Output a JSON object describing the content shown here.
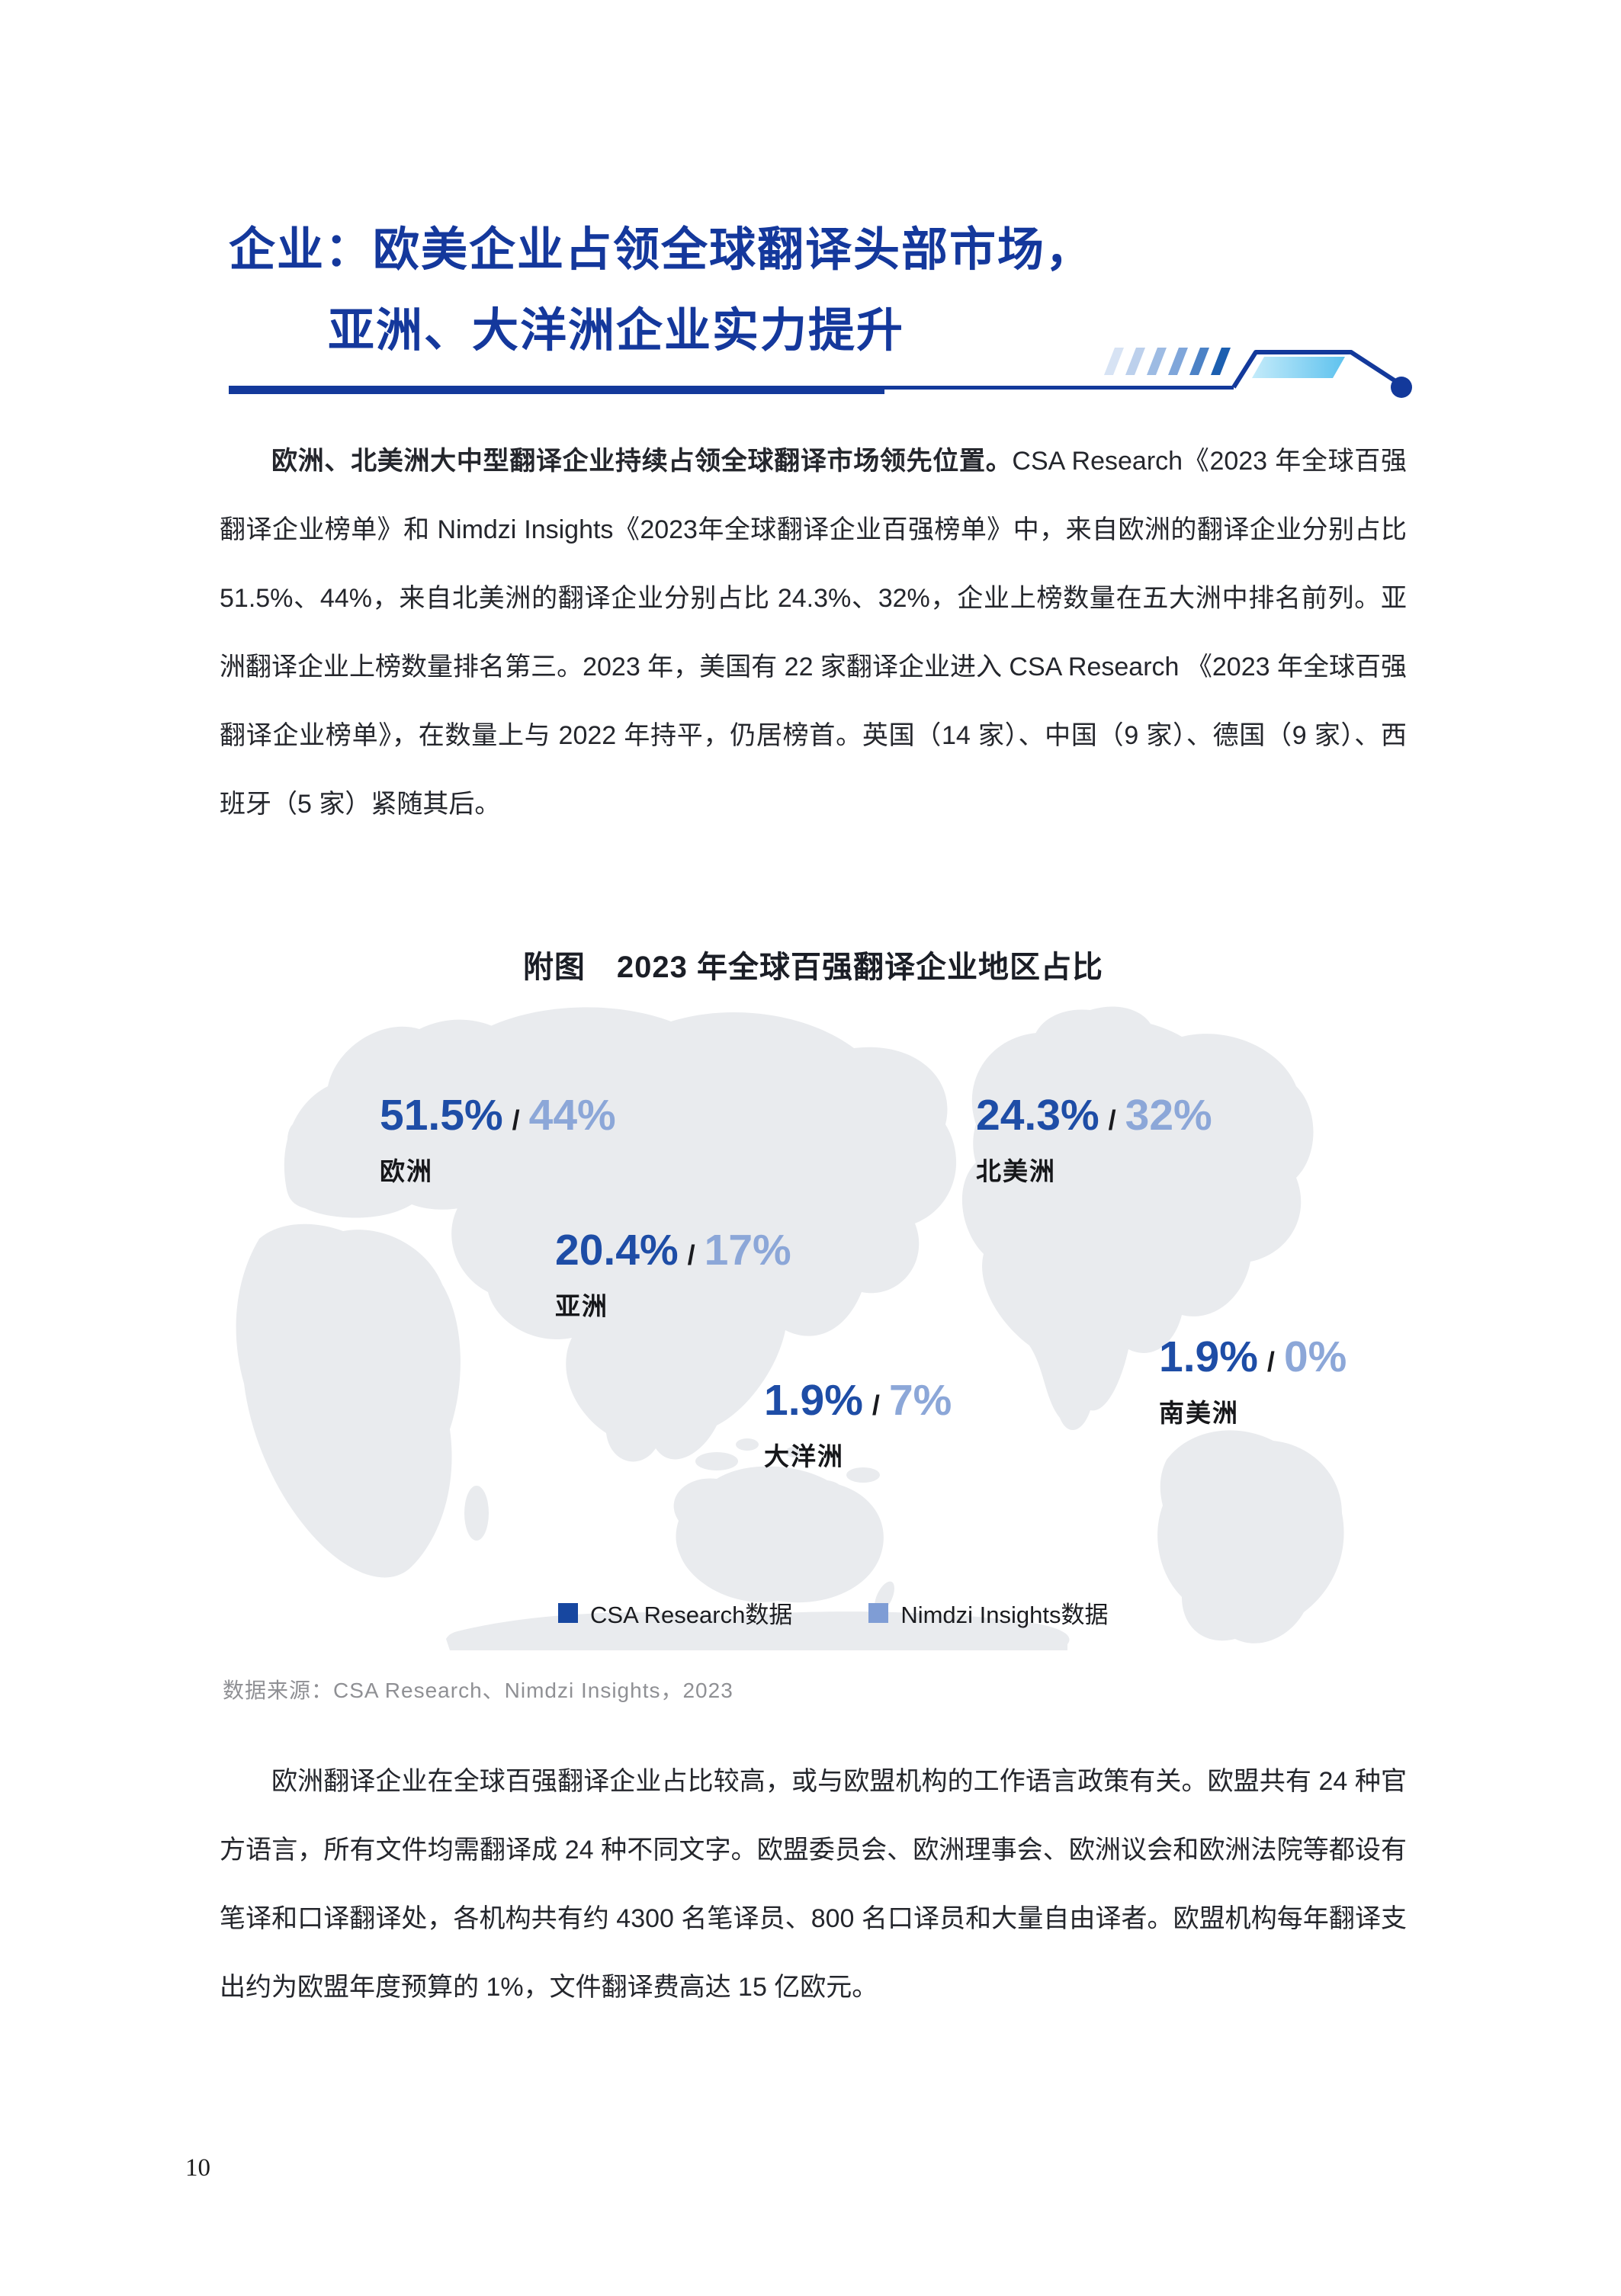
{
  "colors": {
    "accent": "#14389c",
    "csa": "#1e4da6",
    "nimdzi": "#8ca7d8",
    "text": "#24262c",
    "source_gray": "#8f9094",
    "map_gray": "#e9ebee"
  },
  "header": {
    "title_line1": "企业：欧美企业占领全球翻译头部市场，",
    "title_line2": "亚洲、大洋洲企业实力提升"
  },
  "paragraph1": {
    "bold_lead": "欧洲、北美洲大中型翻译企业持续占领全球翻译市场领先位置。",
    "rest": "CSA Research《2023 年全球百强翻译企业榜单》和 Nimdzi Insights《2023年全球翻译企业百强榜单》中，来自欧洲的翻译企业分别占比 51.5%、44%，来自北美洲的翻译企业分别占比 24.3%、32%，企业上榜数量在五大洲中排名前列。亚洲翻译企业上榜数量排名第三。2023 年，美国有 22 家翻译企业进入 CSA Research 《2023 年全球百强翻译企业榜单》，在数量上与 2022 年持平，仍居榜首。英国（14 家）、中国（9 家）、德国（9 家）、西班牙（5 家）紧随其后。"
  },
  "figure": {
    "title": "附图　2023 年全球百强翻译企业地区占比",
    "source": "数据来源：CSA Research、Nimdzi Insights，2023",
    "legend": [
      {
        "label": "CSA Research数据",
        "color": "#1747a0"
      },
      {
        "label": "Nimdzi Insights数据",
        "color": "#7f9dd5"
      }
    ],
    "chart_data": {
      "type": "map-labels",
      "series": [
        {
          "name": "CSA Research数据"
        },
        {
          "name": "Nimdzi Insights数据"
        }
      ],
      "regions": [
        {
          "key": "europe",
          "name": "欧洲",
          "csa": 51.5,
          "nimdzi": 44,
          "csa_label": "51.5%",
          "nimdzi_label": "44%"
        },
        {
          "key": "north-america",
          "name": "北美洲",
          "csa": 24.3,
          "nimdzi": 32,
          "csa_label": "24.3%",
          "nimdzi_label": "32%"
        },
        {
          "key": "asia",
          "name": "亚洲",
          "csa": 20.4,
          "nimdzi": 17,
          "csa_label": "20.4%",
          "nimdzi_label": "17%"
        },
        {
          "key": "oceania",
          "name": "大洋洲",
          "csa": 1.9,
          "nimdzi": 7,
          "csa_label": "1.9%",
          "nimdzi_label": "7%"
        },
        {
          "key": "south-america",
          "name": "南美洲",
          "csa": 1.9,
          "nimdzi": 0,
          "csa_label": "1.9%",
          "nimdzi_label": "0%"
        }
      ]
    }
  },
  "paragraph2": "欧洲翻译企业在全球百强翻译企业占比较高，或与欧盟机构的工作语言政策有关。欧盟共有 24 种官方语言，所有文件均需翻译成 24 种不同文字。欧盟委员会、欧洲理事会、欧洲议会和欧洲法院等都设有笔译和口译翻译处，各机构共有约 4300 名笔译员、800 名口译员和大量自由译者。欧盟机构每年翻译支出约为欧盟年度预算的 1%，文件翻译费高达 15 亿欧元。",
  "page": {
    "number": "10"
  }
}
